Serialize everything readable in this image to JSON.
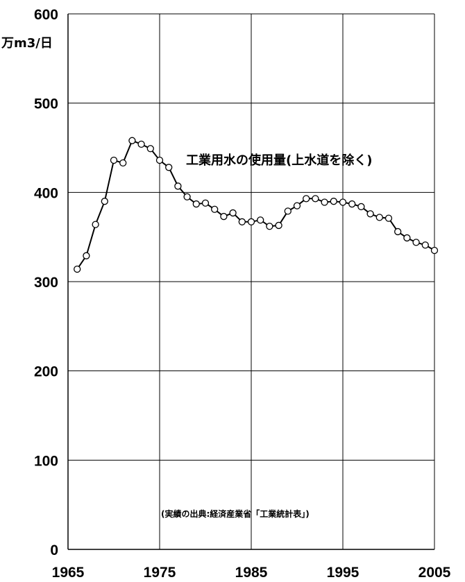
{
  "chart_data": {
    "type": "line",
    "unit_label": "万m3/日",
    "series_label": "工業用水の使用量(上水道を除く)",
    "source_note": "(実績の出典:経済産業省「工業統計表」)",
    "xlim": [
      1965,
      2005
    ],
    "ylim": [
      0,
      600
    ],
    "x_ticks": [
      1965,
      1975,
      1985,
      1995,
      2005
    ],
    "y_ticks": [
      0,
      100,
      200,
      300,
      400,
      500,
      600
    ],
    "grid": true,
    "series": [
      {
        "x": [
          1966,
          1967,
          1968,
          1969,
          1970,
          1971,
          1972,
          1973,
          1974,
          1975,
          1976,
          1977,
          1978,
          1979,
          1980,
          1981,
          1982,
          1983,
          1984,
          1985,
          1986,
          1987,
          1988,
          1989,
          1990,
          1991,
          1992,
          1993,
          1994,
          1995,
          1996,
          1997,
          1998,
          1999,
          2000,
          2001,
          2002,
          2003,
          2004,
          2005
        ],
        "y": [
          314,
          329,
          364,
          390,
          436,
          433,
          458,
          454,
          449,
          436,
          428,
          407,
          395,
          387,
          388,
          381,
          373,
          377,
          367,
          367,
          369,
          362,
          363,
          379,
          385,
          393,
          393,
          389,
          390,
          389,
          387,
          384,
          376,
          372,
          371,
          356,
          349,
          344,
          341,
          335
        ]
      }
    ]
  }
}
